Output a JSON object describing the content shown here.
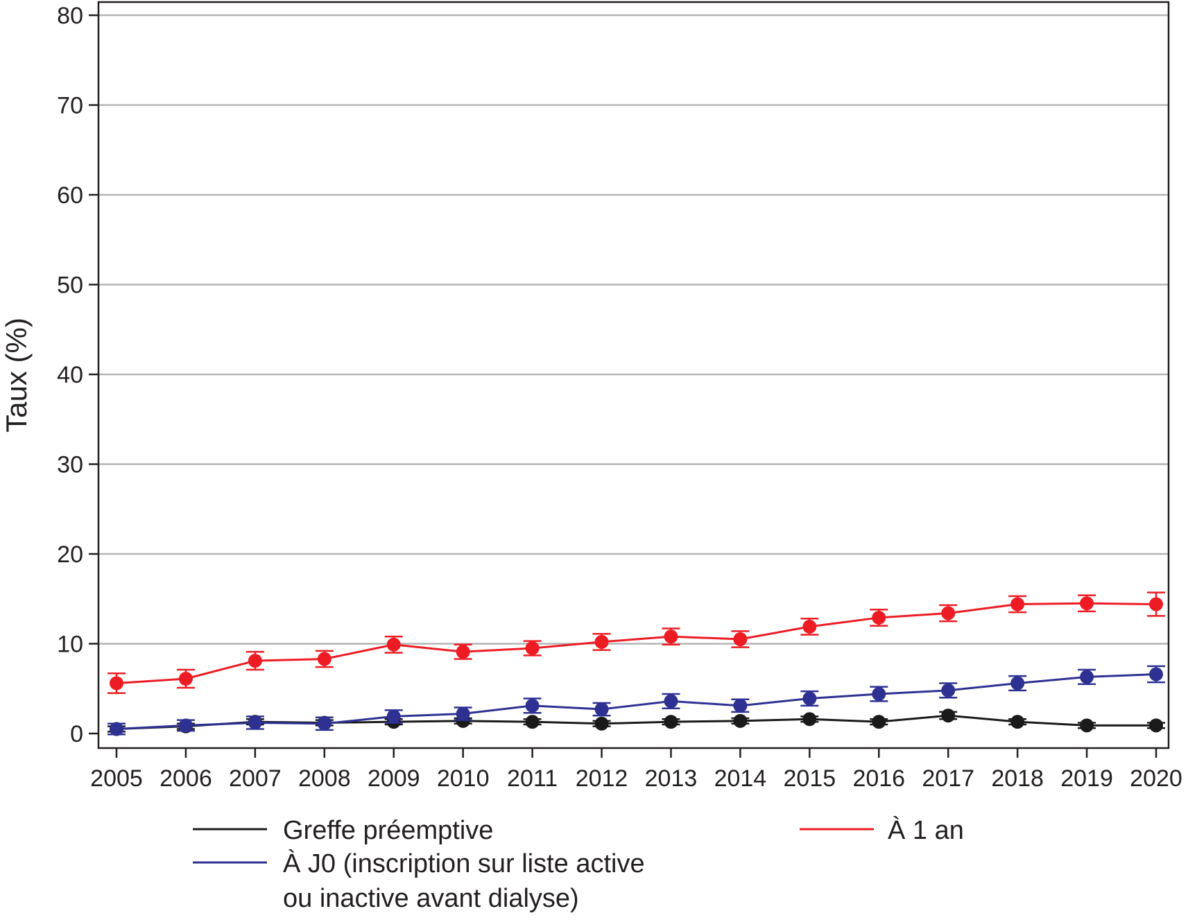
{
  "chart_data": {
    "type": "line",
    "xlabel": "",
    "ylabel": "Taux (%)",
    "ylim": [
      0,
      80
    ],
    "yticks": [
      0,
      10,
      20,
      30,
      40,
      50,
      60,
      70,
      80
    ],
    "grid": "horizontal",
    "x": [
      2005,
      2006,
      2007,
      2008,
      2009,
      2010,
      2011,
      2012,
      2013,
      2014,
      2015,
      2016,
      2017,
      2018,
      2019,
      2020
    ],
    "series": [
      {
        "name": "Greffe préemptive",
        "color": "#1a1a1a",
        "values": [
          0.5,
          0.8,
          1.3,
          1.2,
          1.3,
          1.4,
          1.3,
          1.1,
          1.3,
          1.4,
          1.6,
          1.3,
          2.0,
          1.3,
          0.9,
          0.9
        ],
        "err": [
          0.3,
          0.3,
          0.3,
          0.3,
          0.3,
          0.3,
          0.3,
          0.3,
          0.3,
          0.3,
          0.3,
          0.3,
          0.4,
          0.3,
          0.3,
          0.3
        ]
      },
      {
        "name": "À J0 (inscription sur liste active ou inactive avant dialyse)",
        "name_lines": [
          "À J0 (inscription sur liste active",
          "ou inactive avant dialyse)"
        ],
        "color": "#2e3192",
        "values": [
          0.5,
          0.9,
          1.2,
          1.1,
          1.9,
          2.2,
          3.1,
          2.7,
          3.6,
          3.1,
          3.9,
          4.4,
          4.8,
          5.6,
          6.3,
          6.6
        ],
        "err": [
          0.6,
          0.6,
          0.7,
          0.7,
          0.7,
          0.7,
          0.8,
          0.7,
          0.8,
          0.7,
          0.8,
          0.8,
          0.8,
          0.8,
          0.8,
          0.9
        ]
      },
      {
        "name": "À 1 an",
        "color": "#ed1c24",
        "values": [
          5.6,
          6.1,
          8.1,
          8.3,
          9.9,
          9.1,
          9.5,
          10.2,
          10.8,
          10.5,
          11.9,
          12.9,
          13.4,
          14.4,
          14.5,
          14.4
        ],
        "err": [
          1.1,
          1.0,
          1.0,
          0.9,
          0.9,
          0.8,
          0.8,
          0.9,
          0.9,
          0.9,
          0.9,
          0.9,
          0.9,
          0.9,
          0.9,
          1.3
        ]
      }
    ],
    "legend": {
      "placement": "bottom"
    }
  }
}
